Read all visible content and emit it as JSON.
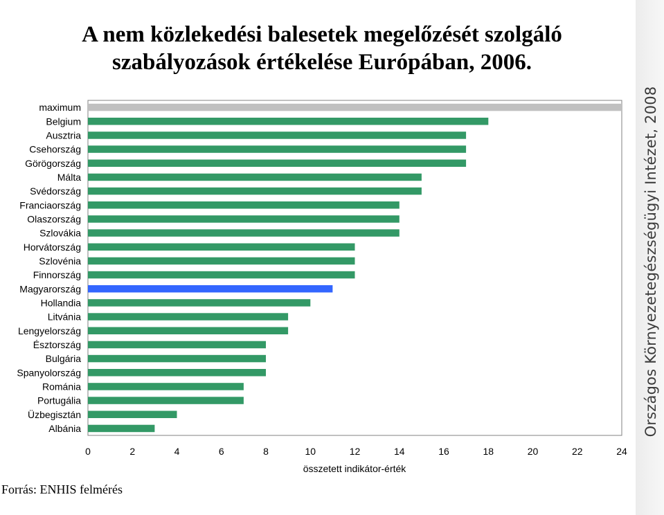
{
  "title_lines": [
    "A nem közlekedési balesetek megelőzését szolgáló",
    "szabályozások értékelése Európában, 2006."
  ],
  "source": "Forrás: ENHIS felmérés",
  "watermark": "Országos Környezetegészségügyi Intézet, 2008",
  "colors": {
    "default_bar": "#339966",
    "highlight_bar": "#3366ff",
    "maximum_bar": "#c0c0c0"
  },
  "chart_data": {
    "type": "bar",
    "orientation": "horizontal",
    "categories": [
      "maximum",
      "Belgium",
      "Ausztria",
      "Csehország",
      "Görögország",
      "Málta",
      "Svédország",
      "Franciaország",
      "Olaszország",
      "Szlovákia",
      "Horvátország",
      "Szlovénia",
      "Finnország",
      "Magyarország",
      "Hollandia",
      "Litvánia",
      "Lengyelország",
      "Észtország",
      "Bulgária",
      "Spanyolország",
      "Románia",
      "Portugália",
      "Üzbegisztán",
      "Albánia"
    ],
    "values": [
      24,
      18,
      17,
      17,
      17,
      15,
      15,
      14,
      14,
      14,
      12,
      12,
      12,
      11,
      10,
      9,
      9,
      8,
      8,
      8,
      7,
      7,
      4,
      3
    ],
    "highlight": "Magyarország",
    "xlabel": "összetett indikátor-érték",
    "xlim": [
      0,
      24
    ],
    "xticks": [
      "0",
      "2",
      "4",
      "6",
      "8",
      "10",
      "12",
      "14",
      "16",
      "18",
      "20",
      "22",
      "24"
    ],
    "grid": false,
    "legend": "none"
  }
}
